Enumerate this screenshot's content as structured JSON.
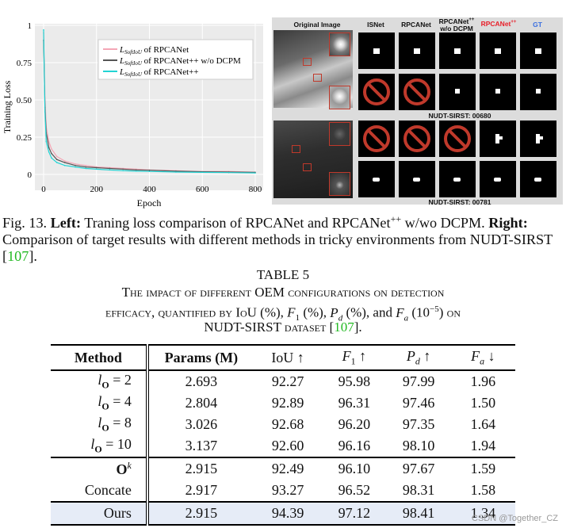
{
  "chart_data": {
    "type": "line",
    "ylabel": "Training Loss",
    "xlabel": "Epoch",
    "xlim": [
      0,
      800
    ],
    "ylim": [
      0,
      1.0
    ],
    "xticks": [
      0,
      200,
      400,
      600,
      800
    ],
    "yticks": [
      0,
      0.25,
      0.5,
      0.75,
      1
    ],
    "ytick_labels": [
      "0",
      "0.25",
      "0.50",
      "0.75",
      "1"
    ],
    "grid": true,
    "legend_position": "top-right",
    "series": [
      {
        "name": "of RPCANet",
        "color": "#f4a6b6",
        "x": [
          0,
          5,
          10,
          20,
          30,
          50,
          80,
          120,
          160,
          200,
          250,
          300,
          350,
          400,
          500,
          600,
          700,
          800
        ],
        "values": [
          0.95,
          0.52,
          0.32,
          0.22,
          0.17,
          0.12,
          0.09,
          0.07,
          0.06,
          0.05,
          0.045,
          0.04,
          0.035,
          0.03,
          0.025,
          0.02,
          0.02,
          0.015
        ]
      },
      {
        "name": "of RPCANet++ w/o DCPM",
        "color": "#555555",
        "x": [
          0,
          5,
          10,
          20,
          30,
          50,
          80,
          120,
          160,
          200,
          250,
          300,
          350,
          400,
          500,
          600,
          700,
          800
        ],
        "values": [
          0.9,
          0.45,
          0.28,
          0.18,
          0.14,
          0.1,
          0.08,
          0.06,
          0.05,
          0.045,
          0.04,
          0.035,
          0.03,
          0.028,
          0.022,
          0.018,
          0.016,
          0.014
        ]
      },
      {
        "name": "of RPCANet++",
        "color": "#22d4d4",
        "x": [
          0,
          5,
          10,
          20,
          30,
          50,
          80,
          120,
          160,
          200,
          250,
          300,
          350,
          400,
          500,
          600,
          700,
          800
        ],
        "values": [
          0.97,
          0.42,
          0.22,
          0.15,
          0.11,
          0.08,
          0.06,
          0.05,
          0.04,
          0.035,
          0.03,
          0.025,
          0.022,
          0.02,
          0.016,
          0.014,
          0.012,
          0.01
        ]
      }
    ],
    "legend_prefix": "L",
    "legend_subscript": "SoftIoU"
  },
  "grid": {
    "headers": [
      "Original Image",
      "ISNet",
      "RPCANet",
      "RPCANet++ w/o DCPM",
      "RPCANet++",
      "GT"
    ],
    "header_colors": [
      "#000000",
      "#000000",
      "#000000",
      "#000000",
      "#e8202a",
      "#3a6fe0"
    ],
    "ids": [
      "NUDT-SIRST: 00680",
      "NUDT-SIRST: 00781"
    ]
  },
  "figure_caption": {
    "label": "Fig. 13.",
    "left_bold": "Left:",
    "left_text": "Traning loss comparison of RPCANet and RPCANet",
    "left_sup": "++",
    "left_tail": "w/wo DCPM.",
    "right_bold": "Right:",
    "right_text": "Comparison of target results with different methods in tricky environments from NUDT-SIRST",
    "ref": "107",
    "end": "."
  },
  "table_title": {
    "number": "TABLE 5",
    "line1": "The impact of different OEM configurations on detection",
    "line2_a": "efficacy, quantified by IoU (%),",
    "line2_b": "(%),",
    "line2_c": "(%), and",
    "line2_d": "on",
    "line3_a": "NUDT-SIRST dataset [",
    "ref": "107",
    "line3_b": "]."
  },
  "table": {
    "headers": [
      "Method",
      "Params (M)",
      "IoU ↑",
      "F1 ↑",
      "Pd ↑",
      "Fa ↓"
    ],
    "rows": [
      {
        "method": "lO = 2",
        "params": "2.693",
        "iou": "92.27",
        "f1": "95.98",
        "pd": "97.99",
        "fa": "1.96"
      },
      {
        "method": "lO = 4",
        "params": "2.804",
        "iou": "92.89",
        "f1": "96.31",
        "pd": "97.46",
        "fa": "1.50"
      },
      {
        "method": "lO = 8",
        "params": "3.026",
        "iou": "92.68",
        "f1": "96.20",
        "pd": "97.35",
        "fa": "1.64"
      },
      {
        "method": "lO = 10",
        "params": "3.137",
        "iou": "92.60",
        "f1": "96.16",
        "pd": "98.10",
        "fa": "1.94"
      },
      {
        "method": "Ok",
        "params": "2.915",
        "iou": "92.49",
        "f1": "96.10",
        "pd": "97.67",
        "fa": "1.59"
      },
      {
        "method": "Concate",
        "params": "2.917",
        "iou": "93.27",
        "f1": "96.52",
        "pd": "98.31",
        "fa": "1.58"
      },
      {
        "method": "Ours",
        "params": "2.915",
        "iou": "94.39",
        "f1": "97.12",
        "pd": "98.41",
        "fa": "1.34"
      }
    ]
  },
  "watermark": "CSDN @Together_CZ"
}
